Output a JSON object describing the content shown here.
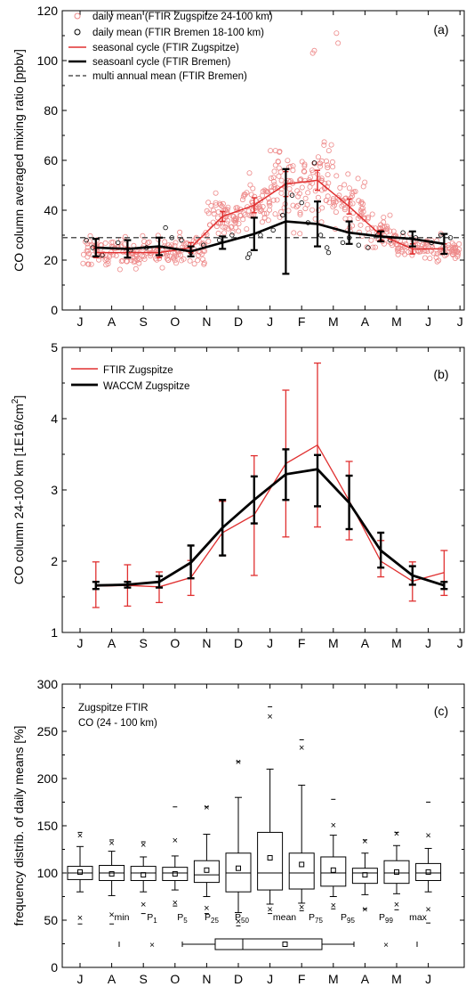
{
  "months": [
    "J",
    "A",
    "S",
    "O",
    "N",
    "D",
    "J",
    "F",
    "M",
    "A",
    "M",
    "J",
    "J"
  ],
  "chart_data": [
    {
      "type": "scatter",
      "panel_label": "(a)",
      "ylabel": "CO column averaged mixing ratio [ppbv]",
      "ylim": [
        0,
        120
      ],
      "yticks": [
        0,
        20,
        40,
        60,
        80,
        100,
        120
      ],
      "legend": {
        "placement": "top-left",
        "entries": [
          "daily mean (FTIR Zugspitze 24-100 km)",
          "daily mean (FTIR Bremen 18-100 km)",
          "seasonal cycle (FTIR Zugspitze)",
          "seasoanl cycle (FTIR Bremen)",
          "multi annual mean (FTIR Bremen)"
        ]
      },
      "colors": {
        "zugspitze": "#e03030",
        "bremen": "#000000",
        "mean": "#555555"
      },
      "multi_annual_mean_bremen": 29,
      "seasonal_cycle_zugspitze": {
        "x": [
          0.5,
          1.5,
          2.5,
          3.5,
          4.5,
          5.5,
          6.5,
          7.5,
          8.5,
          9.5,
          10.5,
          11.5
        ],
        "y": [
          23,
          23,
          23,
          25,
          37.5,
          42,
          50.5,
          52,
          41.5,
          30,
          24.5,
          24.5
        ],
        "err": [
          2,
          2,
          2,
          2,
          2,
          3,
          5,
          4,
          3,
          2,
          2,
          2
        ]
      },
      "seasonal_cycle_bremen": {
        "x": [
          0.5,
          1.5,
          2.5,
          3.5,
          4.5,
          5.5,
          6.5,
          7.5,
          8.5,
          9.5,
          10.5,
          11.5
        ],
        "y": [
          25,
          24.5,
          25.5,
          23.5,
          27,
          30.5,
          35.5,
          34.5,
          31,
          29.5,
          28.5,
          26.5
        ],
        "err": [
          3.5,
          3.5,
          3.5,
          2,
          2.5,
          6.5,
          21,
          9,
          4.5,
          2,
          3,
          4
        ]
      },
      "daily_zugspitze_mean_by_month": [
        23,
        23,
        23,
        25,
        37.5,
        42,
        50.5,
        52,
        41.5,
        30,
        24.5,
        24.5
      ],
      "daily_zugspitze_spread_by_month": [
        6,
        6,
        6,
        6,
        9,
        10,
        16,
        16,
        12,
        7,
        5,
        5
      ],
      "daily_zugspitze_outliers": [
        [
          7.35,
          103
        ],
        [
          7.4,
          104
        ],
        [
          8.1,
          111
        ],
        [
          8.15,
          107
        ]
      ],
      "daily_bremen": [
        [
          0.2,
          28
        ],
        [
          0.4,
          25
        ],
        [
          0.7,
          22
        ],
        [
          1.2,
          27
        ],
        [
          1.6,
          24
        ],
        [
          2.1,
          25
        ],
        [
          2.7,
          33
        ],
        [
          2.9,
          29
        ],
        [
          3.2,
          28
        ],
        [
          3.5,
          23
        ],
        [
          3.9,
          26
        ],
        [
          4.4,
          28
        ],
        [
          4.8,
          30
        ],
        [
          5.3,
          21
        ],
        [
          5.35,
          22.5
        ],
        [
          5.7,
          30
        ],
        [
          6.1,
          32
        ],
        [
          6.4,
          38
        ],
        [
          6.7,
          46
        ],
        [
          7.0,
          43
        ],
        [
          7.2,
          35
        ],
        [
          7.4,
          59
        ],
        [
          7.6,
          30
        ],
        [
          7.8,
          25
        ],
        [
          7.85,
          23
        ],
        [
          8.3,
          27
        ],
        [
          8.5,
          29
        ],
        [
          8.8,
          26
        ],
        [
          9.1,
          25
        ],
        [
          9.4,
          30
        ],
        [
          9.8,
          28
        ],
        [
          10.2,
          31
        ],
        [
          10.6,
          29
        ],
        [
          11.1,
          27
        ],
        [
          11.4,
          30
        ],
        [
          11.7,
          29
        ]
      ]
    },
    {
      "type": "line",
      "panel_label": "(b)",
      "ylabel": "CO column 24-100 km [1E16/cm",
      "ylabel_sup": "2",
      "ylabel_end": "]",
      "ylim": [
        1,
        5
      ],
      "yticks": [
        1,
        2,
        3,
        4,
        5
      ],
      "x": [
        0.5,
        1.5,
        2.5,
        3.5,
        4.5,
        5.5,
        6.5,
        7.5,
        8.5,
        9.5,
        10.5,
        11.5
      ],
      "series": [
        {
          "name": "FTIR Zugspitze",
          "color": "#e03030",
          "values": [
            1.65,
            1.66,
            1.64,
            1.77,
            2.4,
            2.65,
            3.37,
            3.63,
            2.85,
            2.0,
            1.72,
            1.84
          ],
          "err_low": [
            1.35,
            1.37,
            1.42,
            1.52,
            2.08,
            1.8,
            2.34,
            2.48,
            2.3,
            1.78,
            1.44,
            1.52
          ],
          "err_high": [
            1.99,
            1.95,
            1.85,
            2.01,
            2.84,
            3.48,
            4.4,
            4.78,
            3.4,
            2.29,
            1.99,
            2.15
          ]
        },
        {
          "name": "WACCM Zugspitze",
          "color": "#000000",
          "values": [
            1.66,
            1.67,
            1.71,
            1.98,
            2.47,
            2.86,
            3.22,
            3.29,
            2.82,
            2.15,
            1.8,
            1.66
          ],
          "err_low": [
            1.61,
            1.63,
            1.63,
            1.76,
            2.08,
            2.53,
            2.86,
            2.77,
            2.45,
            1.91,
            1.67,
            1.61
          ],
          "err_high": [
            1.71,
            1.71,
            1.79,
            2.22,
            2.86,
            3.19,
            3.57,
            3.49,
            3.2,
            2.4,
            1.93,
            1.71
          ]
        }
      ]
    },
    {
      "type": "box",
      "panel_label": "(c)",
      "ylabel": "frequency distrib. of daily means [%]",
      "title_lines": [
        "Zugspitze FTIR",
        "CO (24 - 100 km)"
      ],
      "ylim": [
        0,
        300
      ],
      "yticks": [
        0,
        50,
        100,
        150,
        200,
        250,
        300
      ],
      "categories": [
        "J",
        "A",
        "S",
        "O",
        "N",
        "D",
        "J",
        "F",
        "M",
        "A",
        "M",
        "J"
      ],
      "boxes": [
        {
          "min": 46,
          "p1": 53,
          "p5": 80,
          "p25": 93,
          "p50": 100,
          "mean": 101,
          "p75": 107,
          "p95": 128,
          "p99": 140,
          "max": 143
        },
        {
          "min": 46,
          "p1": 56,
          "p5": 76,
          "p25": 92,
          "p50": 100,
          "mean": 99,
          "p75": 108,
          "p95": 123,
          "p99": 132,
          "max": 135
        },
        {
          "min": 57,
          "p1": 67,
          "p5": 80,
          "p25": 92,
          "p50": 100,
          "mean": 98,
          "p75": 107,
          "p95": 117,
          "p99": 130,
          "max": 133
        },
        {
          "min": 65,
          "p1": 69,
          "p5": 82,
          "p25": 92,
          "p50": 100,
          "mean": 99,
          "p75": 106,
          "p95": 118,
          "p99": 135,
          "max": 170
        },
        {
          "min": 57,
          "p1": 63,
          "p5": 75,
          "p25": 90,
          "p50": 98,
          "mean": 103,
          "p75": 113,
          "p95": 141,
          "p99": 170,
          "max": 170
        },
        {
          "min": 44,
          "p1": 49,
          "p5": 58,
          "p25": 80,
          "p50": 100,
          "mean": 105,
          "p75": 121,
          "p95": 180,
          "p99": 218,
          "max": 218
        },
        {
          "min": 57,
          "p1": 62,
          "p5": 67,
          "p25": 82,
          "p50": 100,
          "mean": 116,
          "p75": 143,
          "p95": 210,
          "p99": 266,
          "max": 276
        },
        {
          "min": 60,
          "p1": 64,
          "p5": 68,
          "p25": 83,
          "p50": 100,
          "mean": 109,
          "p75": 121,
          "p95": 193,
          "p99": 233,
          "max": 241
        },
        {
          "min": 62,
          "p1": 66,
          "p5": 75,
          "p25": 86,
          "p50": 100,
          "mean": 103,
          "p75": 117,
          "p95": 140,
          "p99": 151,
          "max": 178
        },
        {
          "min": 62,
          "p1": 62,
          "p5": 77,
          "p25": 89,
          "p50": 100,
          "mean": 98,
          "p75": 105,
          "p95": 121,
          "p99": 134,
          "max": 135
        },
        {
          "min": 61,
          "p1": 67,
          "p5": 78,
          "p25": 89,
          "p50": 100,
          "mean": 101,
          "p75": 113,
          "p95": 129,
          "p99": 142,
          "max": 143
        },
        {
          "min": 47,
          "p1": 62,
          "p5": 80,
          "p25": 92,
          "p50": 100,
          "mean": 101,
          "p75": 110,
          "p95": 126,
          "p99": 140,
          "max": 175
        }
      ],
      "legend_labels": {
        "min": "min",
        "p1": "P",
        "p1_sub": "1",
        "p5": "P",
        "p5_sub": "5",
        "p25": "P",
        "p25_sub": "25",
        "p50": "P",
        "p50_sub": "50",
        "mean": "mean",
        "p75": "P",
        "p75_sub": "75",
        "p95": "P",
        "p95_sub": "95",
        "p99": "P",
        "p99_sub": "99",
        "max": "max"
      }
    }
  ]
}
